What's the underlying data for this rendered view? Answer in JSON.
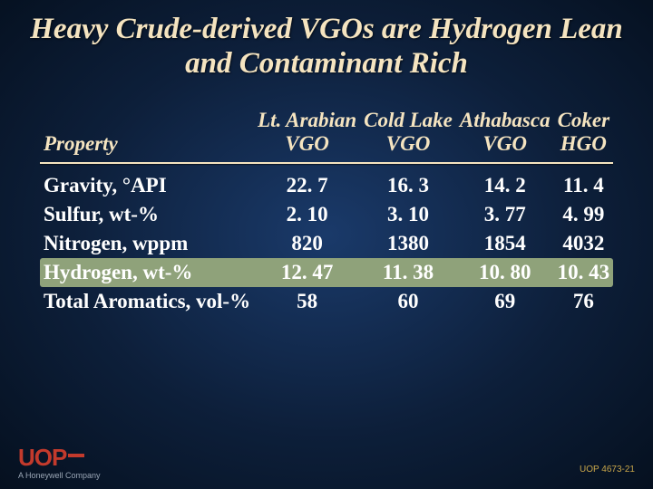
{
  "title": "Heavy Crude-derived VGOs are Hydrogen Lean and Contaminant Rich",
  "table": {
    "property_header": "Property",
    "columns": [
      {
        "line1": "Lt. Arabian",
        "line2": "VGO"
      },
      {
        "line1": "Cold Lake",
        "line2": "VGO"
      },
      {
        "line1": "Athabasca",
        "line2": "VGO"
      },
      {
        "line1": "Coker",
        "line2": "HGO"
      }
    ],
    "rows": [
      {
        "label": "Gravity, °API",
        "values": [
          "22. 7",
          "16. 3",
          "14. 2",
          "11. 4"
        ],
        "highlight": false
      },
      {
        "label": "Sulfur, wt-%",
        "values": [
          "2. 10",
          "3. 10",
          "3. 77",
          "4. 99"
        ],
        "highlight": false
      },
      {
        "label": "Nitrogen, wppm",
        "values": [
          "820",
          "1380",
          "1854",
          "4032"
        ],
        "highlight": false
      },
      {
        "label": "Hydrogen, wt-%",
        "values": [
          "12. 47",
          "11. 38",
          "10. 80",
          "10. 43"
        ],
        "highlight": true
      },
      {
        "label": "Total Aromatics, vol-%",
        "values": [
          "58",
          "60",
          "69",
          "76"
        ],
        "highlight": false
      }
    ]
  },
  "branding": {
    "logo_text": "UOP",
    "tagline": "A Honeywell Company"
  },
  "slide_id": "UOP 4673-21",
  "colors": {
    "title_text": "#f5e4c0",
    "body_text": "#ffffff",
    "highlight_bg": "#8fa27a",
    "logo_red": "#c33a2c",
    "slide_id_color": "#c8a64a",
    "bg_center": "#1a3a6a",
    "bg_edge": "#05101f"
  },
  "fonts": {
    "title_size_pt": 25,
    "body_size_pt": 17,
    "title_style": "bold italic",
    "body_weight": "bold"
  }
}
